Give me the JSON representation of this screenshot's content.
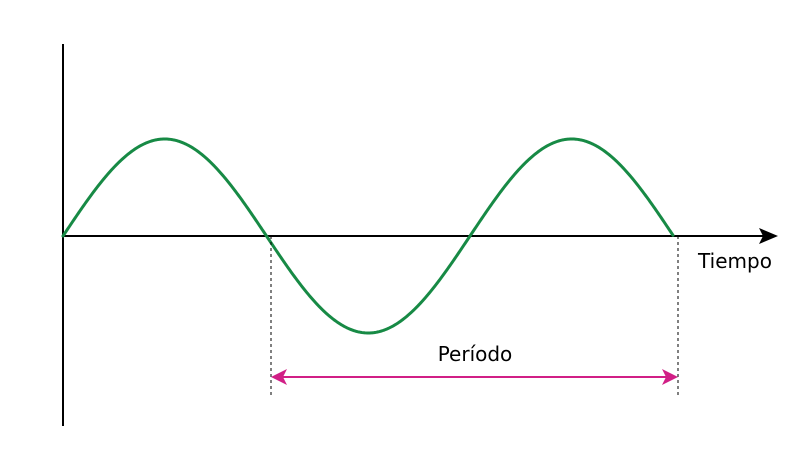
{
  "diagram": {
    "x_axis_label": "Tiempo",
    "period_label": "Período",
    "wave_color": "#178a45",
    "axis_color": "#000000",
    "period_arrow_color": "#d11f86",
    "guide_line_style": "dashed",
    "cycles_shown": 1.5
  }
}
